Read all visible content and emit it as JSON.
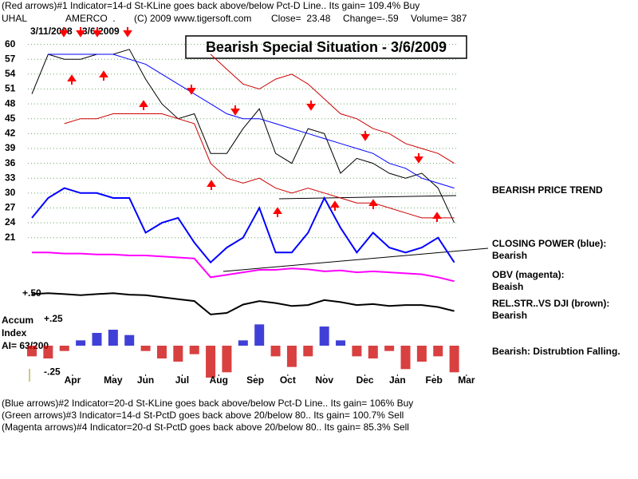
{
  "header": {
    "line1": "(Red arrows)#1 Indicator=14-d St-KLine goes back above/below Pct-D Line.. Its gain= 109.4% Buy",
    "symbol": "UHAL",
    "company": "AMERCO  .",
    "copyright": "(C) 2009 www.tigersoft.com",
    "close": "Close=  23.48",
    "change": "Change=-.59",
    "volume": "Volume= 387"
  },
  "chart_data": [
    {
      "type": "line",
      "title": "Bearish Special Situation - 3/6/2009",
      "start_date": "3/11/2008",
      "end_date": "3/6/2009",
      "axis_note": "+.50",
      "trend_note": "BEARISH PRICE TREND",
      "x": [
        0,
        2,
        4,
        6,
        8,
        10,
        12,
        14,
        16,
        18,
        20,
        22,
        24,
        26,
        28,
        30,
        32,
        34,
        36,
        38,
        40,
        42,
        44,
        46,
        48,
        50,
        52
      ],
      "xlim": [
        0,
        54
      ],
      "ylim": [
        5,
        63
      ],
      "yticks": [
        60,
        57,
        54,
        51,
        48,
        45,
        42,
        39,
        36,
        33,
        30,
        27,
        24,
        21
      ],
      "grid": true,
      "grid_color": "#66aa66",
      "series": [
        {
          "color": "#000000",
          "values": [
            50,
            58,
            57,
            57,
            58,
            58,
            59,
            53,
            48,
            45,
            46,
            38,
            38,
            43,
            47,
            38,
            36,
            43,
            42,
            34,
            37,
            36,
            34,
            33,
            34,
            31,
            24
          ]
        },
        {
          "color": "#0000ff",
          "values": [
            null,
            58,
            58,
            58,
            58,
            58,
            57,
            56,
            54,
            52,
            50,
            48,
            46,
            45,
            45,
            44,
            43,
            42,
            41,
            40,
            39,
            38,
            36,
            35,
            33,
            32,
            31
          ]
        },
        {
          "color": "#cc0000",
          "values": [
            null,
            null,
            null,
            null,
            null,
            null,
            null,
            null,
            null,
            null,
            null,
            58,
            55,
            52,
            51,
            53,
            54,
            52,
            49,
            46,
            45,
            43,
            42,
            40,
            39,
            38,
            36
          ]
        },
        {
          "color": "#cc0000",
          "values": [
            null,
            null,
            44,
            45,
            45,
            46,
            46,
            46,
            46,
            45,
            44,
            36,
            33,
            32,
            33,
            31,
            30,
            31,
            30,
            29,
            28,
            28,
            27,
            26,
            25,
            25,
            25
          ]
        },
        {
          "name": "CLOSING POWER (blue):",
          "status": "Bearish",
          "color": "#0000ff",
          "values": [
            25,
            29,
            31,
            30,
            30,
            29,
            29,
            22,
            24,
            25,
            20,
            16,
            19,
            21,
            27,
            18,
            18,
            22,
            29,
            23,
            18,
            22,
            19,
            18,
            19,
            21,
            16
          ]
        },
        {
          "name": "OBV (magenta):",
          "status": "Beaish",
          "color": "#ff00ff",
          "values": [
            18,
            18,
            17.8,
            17.8,
            17.6,
            17.6,
            17.4,
            17.4,
            17.2,
            17,
            16.8,
            13,
            13.5,
            14,
            14.5,
            14.5,
            14.8,
            14.6,
            14.2,
            14.4,
            14,
            14.2,
            14,
            13.8,
            13.6,
            13,
            12.2
          ]
        },
        {
          "name": "REL.STR..VS DJI (brown):",
          "status": "Bearish",
          "color": "#000000",
          "values": [
            9.6,
            9.8,
            9.6,
            9.4,
            9.6,
            9.8,
            9.5,
            9.4,
            9,
            8.6,
            8.2,
            5.5,
            5.8,
            7.5,
            8.2,
            7.8,
            7.2,
            7.4,
            8.4,
            8,
            7.4,
            7.6,
            7.2,
            7.4,
            7.4,
            7,
            6.2
          ]
        }
      ]
    },
    {
      "type": "bar",
      "labels": [
        "Accum",
        "Index",
        "AI= 63/200"
      ],
      "note": "Bearish: Distrubtion Falling.",
      "x": [
        0,
        2,
        4,
        6,
        8,
        10,
        12,
        14,
        16,
        18,
        20,
        22,
        24,
        26,
        28,
        30,
        32,
        34,
        36,
        38,
        40,
        42,
        44,
        46,
        48,
        50,
        52
      ],
      "values": [
        -0.1,
        -0.12,
        -0.05,
        0.05,
        0.12,
        0.15,
        0.1,
        -0.05,
        -0.12,
        -0.15,
        -0.08,
        -0.3,
        -0.25,
        0.05,
        0.2,
        -0.1,
        -0.2,
        -0.1,
        0.18,
        0.05,
        -0.1,
        -0.12,
        -0.05,
        -0.22,
        -0.15,
        -0.1,
        -0.25
      ],
      "positive_color": "#0000cc",
      "negative_color": "#cc0000",
      "xlim": [
        0,
        54
      ],
      "ylim": [
        -0.3,
        0.3
      ],
      "yticks": [
        {
          "value": 0.25,
          "label": "+.25"
        },
        {
          "value": -0.25,
          "label": "-.25"
        }
      ],
      "xticks": [
        {
          "value": 5,
          "label": "Apr"
        },
        {
          "value": 10,
          "label": "May"
        },
        {
          "value": 14,
          "label": "Jun"
        },
        {
          "value": 18.5,
          "label": "Jul"
        },
        {
          "value": 23,
          "label": "Aug"
        },
        {
          "value": 27.5,
          "label": "Sep"
        },
        {
          "value": 31.5,
          "label": "Oct"
        },
        {
          "value": 36,
          "label": "Nov"
        },
        {
          "value": 41,
          "label": "Dec"
        },
        {
          "value": 45,
          "label": "Jan"
        },
        {
          "value": 49.5,
          "label": "Feb"
        },
        {
          "value": 53.5,
          "label": "Mar"
        }
      ]
    }
  ],
  "footer": [
    "(Blue arrows)#2 Indicator=20-d St-KLine goes back above/below Pct-D Line.. Its gain= 106% Buy",
    "(Green arrows)#3 Indicator=14-d St-PctD goes back above 20/below 80.. Its gain= 100.7% Sell",
    "(Magenta arrows)#4 Indicator=20-d St-PctD goes back above 20/below 80.. Its gain= 85.3% Sell"
  ]
}
